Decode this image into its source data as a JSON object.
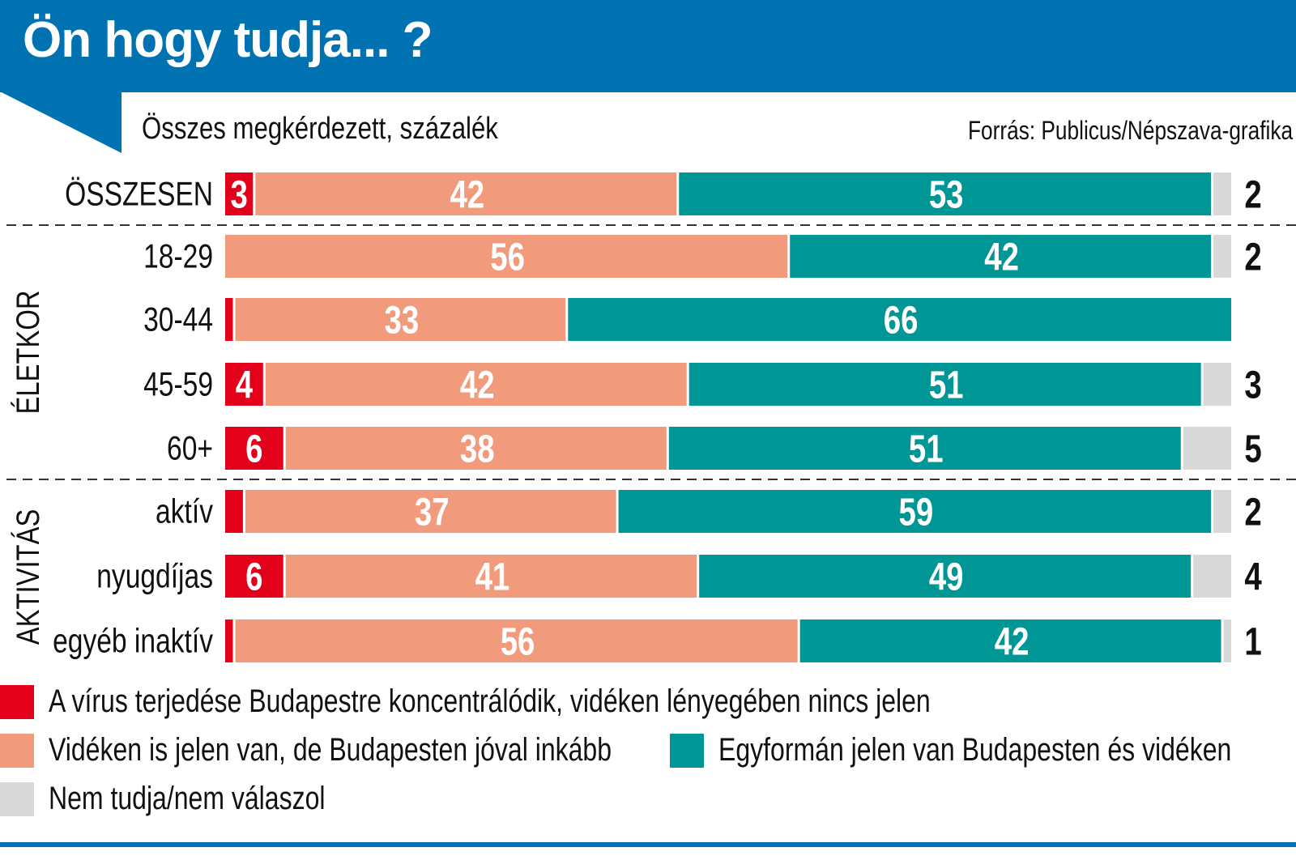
{
  "header": {
    "title": "Ön hogy tudja... ?",
    "subtitle": "Összes megkérdezett, százalék",
    "source": "Forrás: Publicus/Népszava-grafika"
  },
  "colors": {
    "header_blue": "#0072b1",
    "red": "#e2001a",
    "salmon": "#f29a7c",
    "teal": "#009695",
    "grey": "#d9d9d9"
  },
  "legend": [
    {
      "label": "A vírus terjedése Budapestre koncentrálódik, vidéken lényegében nincs jelen",
      "color": "#e2001a"
    },
    {
      "label": "Vidéken is jelen van, de Budapesten jóval inkább",
      "color": "#f29a7c"
    },
    {
      "label": "Egyformán jelen van Budapesten és vidéken",
      "color": "#009695"
    },
    {
      "label": "Nem tudja/nem válaszol",
      "color": "#d9d9d9"
    }
  ],
  "chart_data": {
    "type": "bar",
    "orientation": "horizontal",
    "stacked": true,
    "title": "Ön hogy tudja... ?",
    "subtitle": "Összes megkérdezett, százalék",
    "xlabel": "",
    "ylabel": "",
    "xlim": [
      0,
      100
    ],
    "groups": [
      {
        "label": "",
        "categories": [
          "ÖSSZESEN"
        ]
      },
      {
        "label": "ÉLETKOR",
        "categories": [
          "18-29",
          "30-44",
          "45-59",
          "60+"
        ]
      },
      {
        "label": "AKTIVITÁS",
        "categories": [
          "aktív",
          "nyugdíjas",
          "egyéb inaktív"
        ]
      }
    ],
    "categories": [
      "ÖSSZESEN",
      "18-29",
      "30-44",
      "45-59",
      "60+",
      "aktív",
      "nyugdíjas",
      "egyéb inaktív"
    ],
    "series": [
      {
        "name": "A vírus terjedése Budapestre koncentrálódik, vidéken lényegében nincs jelen",
        "color": "#e2001a",
        "values": [
          3,
          0,
          1,
          4,
          6,
          2,
          6,
          1
        ]
      },
      {
        "name": "Vidéken is jelen van, de Budapesten jóval inkább",
        "color": "#f29a7c",
        "values": [
          42,
          56,
          33,
          42,
          38,
          37,
          41,
          56
        ]
      },
      {
        "name": "Egyformán jelen van Budapesten és vidéken",
        "color": "#009695",
        "values": [
          53,
          42,
          66,
          51,
          51,
          59,
          49,
          42
        ]
      },
      {
        "name": "Nem tudja/nem válaszol",
        "color": "#d9d9d9",
        "values": [
          2,
          2,
          0,
          3,
          5,
          2,
          4,
          1
        ]
      }
    ],
    "legend_position": "bottom",
    "grid": false
  }
}
